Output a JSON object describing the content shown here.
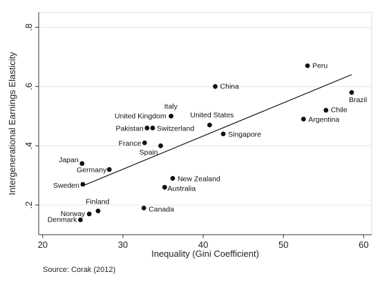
{
  "chart_data": {
    "type": "scatter",
    "xlabel": "Inequality (Gini Coefficient)",
    "ylabel": "Intergenerational Earnings Elasticity",
    "xlim": [
      19.5,
      61
    ],
    "ylim": [
      0.1,
      0.85
    ],
    "xticks": [
      20,
      30,
      40,
      50,
      60
    ],
    "yticks": [
      0.2,
      0.4,
      0.6,
      0.8
    ],
    "ytick_labels": [
      ".2",
      ".4",
      ".6",
      ".8"
    ],
    "grid": "horizontal",
    "legend": "none",
    "source": "Source: Corak (2012)",
    "points": [
      {
        "label": "Peru",
        "x": 53.0,
        "y": 0.67
      },
      {
        "label": "Brazil",
        "x": 58.5,
        "y": 0.58
      },
      {
        "label": "Chile",
        "x": 55.3,
        "y": 0.52
      },
      {
        "label": "Argentina",
        "x": 52.5,
        "y": 0.49
      },
      {
        "label": "China",
        "x": 41.5,
        "y": 0.6
      },
      {
        "label": "Italy",
        "x": 36.0,
        "y": 0.5
      },
      {
        "label": "United Kingdom",
        "x": 36.0,
        "y": 0.5
      },
      {
        "label": "United States",
        "x": 40.8,
        "y": 0.47
      },
      {
        "label": "Singapore",
        "x": 42.5,
        "y": 0.44
      },
      {
        "label": "Pakistan",
        "x": 33.0,
        "y": 0.46
      },
      {
        "label": "Switzerland",
        "x": 33.7,
        "y": 0.46
      },
      {
        "label": "France",
        "x": 32.7,
        "y": 0.41
      },
      {
        "label": "Spain",
        "x": 34.7,
        "y": 0.4
      },
      {
        "label": "Japan",
        "x": 24.9,
        "y": 0.34
      },
      {
        "label": "Germany",
        "x": 28.3,
        "y": 0.32
      },
      {
        "label": "Sweden",
        "x": 25.0,
        "y": 0.27
      },
      {
        "label": "New Zealand",
        "x": 36.2,
        "y": 0.29
      },
      {
        "label": "Australia",
        "x": 35.2,
        "y": 0.26
      },
      {
        "label": "Canada",
        "x": 32.6,
        "y": 0.19
      },
      {
        "label": "Finland",
        "x": 26.9,
        "y": 0.18
      },
      {
        "label": "Norway",
        "x": 25.8,
        "y": 0.17
      },
      {
        "label": "Denmark",
        "x": 24.7,
        "y": 0.15
      }
    ],
    "fit_line": {
      "x": [
        25.0,
        58.5
      ],
      "y": [
        0.265,
        0.64
      ]
    }
  }
}
